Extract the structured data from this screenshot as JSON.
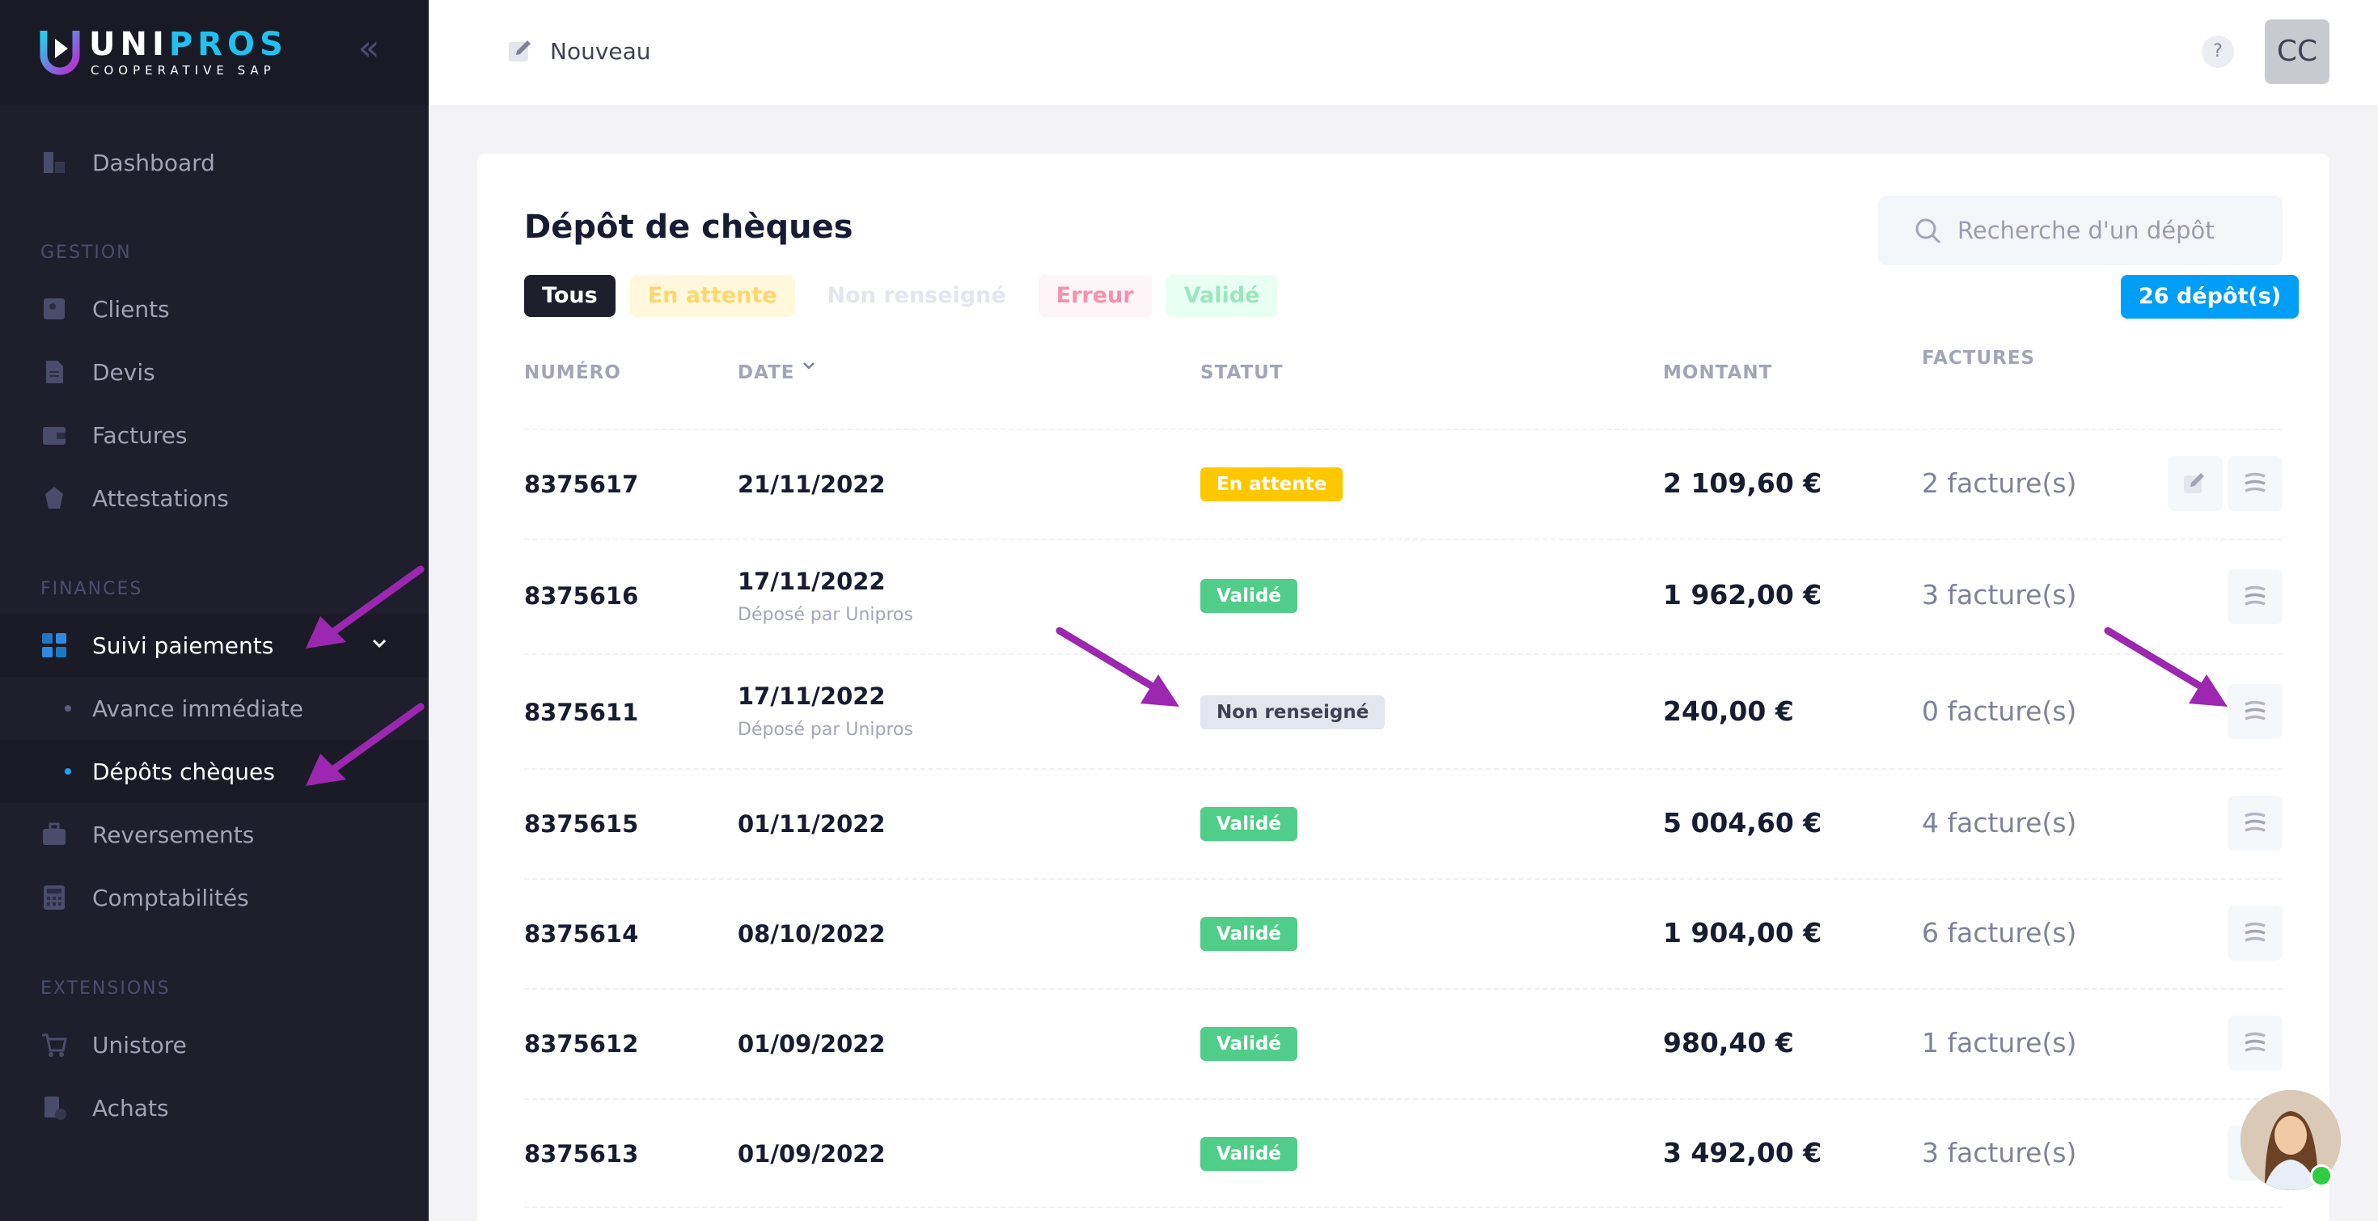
{
  "brand": {
    "name_a": "UNI",
    "name_b": "PROS",
    "sub": "COOPERATIVE SAP"
  },
  "sidebar": {
    "dashboard": "Dashboard",
    "section_gestion": "GESTION",
    "clients": "Clients",
    "devis": "Devis",
    "factures": "Factures",
    "attestations": "Attestations",
    "section_finances": "FINANCES",
    "suivi": "Suivi paiements",
    "avance": "Avance immédiate",
    "depots": "Dépôts chèques",
    "reversements": "Reversements",
    "comptabilites": "Comptabilités",
    "section_extensions": "EXTENSIONS",
    "unistore": "Unistore",
    "achats": "Achats"
  },
  "topbar": {
    "new_label": "Nouveau",
    "help": "?",
    "avatar": "CC"
  },
  "page": {
    "title": "Dépôt de chèques",
    "search_placeholder": "Recherche d'un dépôt",
    "filters": [
      "Tous",
      "En attente",
      "Non renseigné",
      "Erreur",
      "Validé"
    ],
    "count": "26 dépôt(s)"
  },
  "table": {
    "headers": {
      "numero": "NUMÉRO",
      "date": "DATE",
      "statut": "STATUT",
      "montant": "MONTANT",
      "factures": "FACTURES"
    },
    "rows": [
      {
        "numero": "8375617",
        "date": "21/11/2022",
        "sub": "",
        "statut": "En attente",
        "montant": "2 109,60 €",
        "factures": "2 facture(s)"
      },
      {
        "numero": "8375616",
        "date": "17/11/2022",
        "sub": "Déposé par Unipros",
        "statut": "Validé",
        "montant": "1 962,00 €",
        "factures": "3 facture(s)"
      },
      {
        "numero": "8375611",
        "date": "17/11/2022",
        "sub": "Déposé par Unipros",
        "statut": "Non renseigné",
        "montant": "240,00 €",
        "factures": "0 facture(s)"
      },
      {
        "numero": "8375615",
        "date": "01/11/2022",
        "sub": "",
        "statut": "Validé",
        "montant": "5 004,60 €",
        "factures": "4 facture(s)"
      },
      {
        "numero": "8375614",
        "date": "08/10/2022",
        "sub": "",
        "statut": "Validé",
        "montant": "1 904,00 €",
        "factures": "6 facture(s)"
      },
      {
        "numero": "8375612",
        "date": "01/09/2022",
        "sub": "",
        "statut": "Validé",
        "montant": "980,40 €",
        "factures": "1 facture(s)"
      },
      {
        "numero": "8375613",
        "date": "01/09/2022",
        "sub": "",
        "statut": "Validé",
        "montant": "3 492,00 €",
        "factures": "3 facture(s)"
      }
    ]
  },
  "colors": {
    "accent": "#009ef7",
    "sidebar": "#1e1e2d",
    "ok": "#50cd89",
    "wait": "#ffc700",
    "annotation_arrow": "#9c27b0"
  }
}
